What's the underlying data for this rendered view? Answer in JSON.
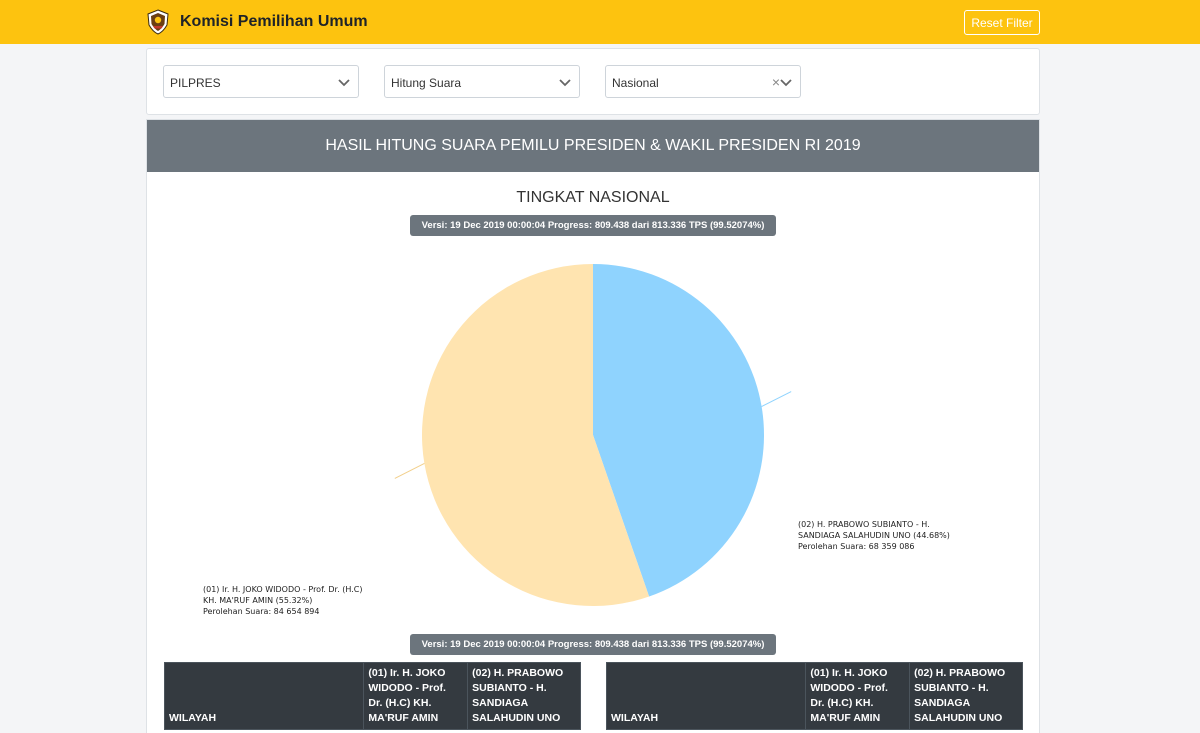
{
  "navbar": {
    "title": "Komisi Pemilihan Umum",
    "reset_label": "Reset Filter",
    "logo_icon": "kpu-emblem-icon",
    "bg_color": "#fdc30f"
  },
  "filters": {
    "election": "PILPRES",
    "mode": "Hitung Suara",
    "region": "Nasional",
    "clear_glyph": "×"
  },
  "result": {
    "header": "HASIL HITUNG SUARA PEMILU PRESIDEN & WAKIL PRESIDEN RI 2019",
    "subtitle": "TINGKAT NASIONAL",
    "version_badge": "Versi: 19 Dec 2019 00:00:04 Progress: 809.438 dari 813.336 TPS (99.52074%)"
  },
  "chart_data": {
    "type": "pie",
    "title": "",
    "slices": [
      {
        "label_lines": [
          "(02) H. PRABOWO SUBIANTO - H.",
          "SANDIAGA SALAHUDIN UNO (44.68%)",
          "Perolehan Suara: 68 359 086"
        ],
        "percent": 44.68,
        "votes": 68359086,
        "color": "#8fd3fe"
      },
      {
        "label_lines": [
          "(01) Ir. H. JOKO WIDODO - Prof. Dr. (H.C)",
          "KH. MA'RUF AMIN (55.32%)",
          "Perolehan Suara: 84 654 894"
        ],
        "percent": 55.32,
        "votes": 84654894,
        "color": "#ffe4b0"
      }
    ]
  },
  "table": {
    "col_wilayah": "WILAYAH",
    "col_01": [
      "(01) Ir. H. JOKO",
      "WIDODO - Prof.",
      "Dr. (H.C) KH.",
      "MA'RUF AMIN"
    ],
    "col_02": [
      "(02) H. PRABOWO",
      "SUBIANTO - H.",
      "SANDIAGA",
      "SALAHUDIN UNO"
    ]
  }
}
